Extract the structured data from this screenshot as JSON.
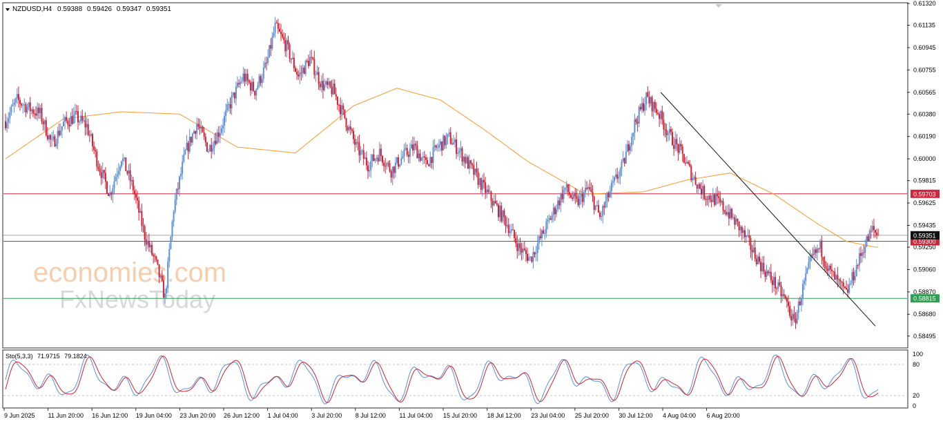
{
  "chart_data": {
    "type": "candlestick",
    "symbol_header": {
      "symbol": "NZDUSD,H4",
      "open": "0.59388",
      "high": "0.59426",
      "low": "0.59347",
      "close": "0.59351"
    },
    "price_axis": {
      "ylim": [
        0.584,
        0.6132
      ],
      "ticks": [
        "0.61320",
        "0.61135",
        "0.60945",
        "0.60755",
        "0.60565",
        "0.60380",
        "0.60190",
        "0.60000",
        "0.59815",
        "0.59625",
        "0.59435",
        "0.59250",
        "0.59060",
        "0.58870",
        "0.58680",
        "0.58495"
      ]
    },
    "horizontal_levels": [
      {
        "value": 0.59703,
        "label": "0.59703",
        "color": "#d0253a"
      },
      {
        "value": 0.593,
        "label": "0.59300",
        "color": "#d0253a"
      },
      {
        "value": 0.58815,
        "label": "0.58815",
        "color": "#2e9e50"
      }
    ],
    "current_price": {
      "value": 0.59351,
      "label": "0.59351"
    },
    "time_axis_labels": [
      "9 Jun 2025",
      "11 Jun 20:00",
      "16 Jun 12:00",
      "19 Jun 04:00",
      "23 Jun 20:00",
      "26 Jun 12:00",
      "1 Jul 04:00",
      "3 Jul 20:00",
      "8 Jul 12:00",
      "11 Jul 04:00",
      "15 Jul 20:00",
      "18 Jul 12:00",
      "23 Jul 04:00",
      "25 Jul 20:00",
      "30 Jul 12:00",
      "4 Aug 04:00",
      "6 Aug 20:00"
    ],
    "close_path_approx": [
      [
        0,
        0.6032
      ],
      [
        8,
        0.605
      ],
      [
        16,
        0.6043
      ],
      [
        24,
        0.6038
      ],
      [
        32,
        0.6012
      ],
      [
        40,
        0.603
      ],
      [
        48,
        0.6036
      ],
      [
        56,
        0.6028
      ],
      [
        64,
        0.5995
      ],
      [
        72,
        0.597
      ],
      [
        80,
        0.6002
      ],
      [
        88,
        0.5975
      ],
      [
        96,
        0.5935
      ],
      [
        104,
        0.591
      ],
      [
        110,
        0.5882
      ],
      [
        116,
        0.5958
      ],
      [
        124,
        0.6005
      ],
      [
        132,
        0.603
      ],
      [
        140,
        0.6008
      ],
      [
        148,
        0.6025
      ],
      [
        156,
        0.605
      ],
      [
        164,
        0.607
      ],
      [
        172,
        0.6058
      ],
      [
        180,
        0.608
      ],
      [
        186,
        0.6112
      ],
      [
        194,
        0.6095
      ],
      [
        202,
        0.607
      ],
      [
        210,
        0.6085
      ],
      [
        218,
        0.6063
      ],
      [
        226,
        0.6058
      ],
      [
        234,
        0.6035
      ],
      [
        242,
        0.601
      ],
      [
        250,
        0.5995
      ],
      [
        258,
        0.6005
      ],
      [
        266,
        0.599
      ],
      [
        274,
        0.6002
      ],
      [
        282,
        0.601
      ],
      [
        290,
        0.5995
      ],
      [
        298,
        0.601
      ],
      [
        306,
        0.6018
      ],
      [
        314,
        0.6005
      ],
      [
        322,
        0.599
      ],
      [
        330,
        0.5975
      ],
      [
        338,
        0.596
      ],
      [
        346,
        0.5945
      ],
      [
        354,
        0.5925
      ],
      [
        362,
        0.5915
      ],
      [
        370,
        0.5935
      ],
      [
        378,
        0.5955
      ],
      [
        386,
        0.5975
      ],
      [
        394,
        0.5962
      ],
      [
        402,
        0.5975
      ],
      [
        410,
        0.595
      ],
      [
        418,
        0.5975
      ],
      [
        426,
        0.5995
      ],
      [
        434,
        0.603
      ],
      [
        442,
        0.6052
      ],
      [
        450,
        0.604
      ],
      [
        458,
        0.602
      ],
      [
        466,
        0.6005
      ],
      [
        474,
        0.5985
      ],
      [
        482,
        0.597
      ],
      [
        490,
        0.5965
      ],
      [
        498,
        0.5955
      ],
      [
        506,
        0.5942
      ],
      [
        514,
        0.5925
      ],
      [
        522,
        0.5908
      ],
      [
        530,
        0.5895
      ],
      [
        538,
        0.588
      ],
      [
        544,
        0.586
      ],
      [
        550,
        0.589
      ],
      [
        556,
        0.5915
      ],
      [
        562,
        0.5925
      ],
      [
        568,
        0.5905
      ],
      [
        574,
        0.5895
      ],
      [
        580,
        0.5885
      ],
      [
        586,
        0.5905
      ],
      [
        592,
        0.5925
      ],
      [
        598,
        0.594
      ],
      [
        602,
        0.59351
      ]
    ],
    "moving_average_approx": [
      [
        0,
        0.6
      ],
      [
        40,
        0.6034
      ],
      [
        80,
        0.604
      ],
      [
        120,
        0.6038
      ],
      [
        160,
        0.601
      ],
      [
        200,
        0.6005
      ],
      [
        240,
        0.6045
      ],
      [
        270,
        0.606
      ],
      [
        300,
        0.605
      ],
      [
        330,
        0.6025
      ],
      [
        360,
        0.5998
      ],
      [
        400,
        0.597
      ],
      [
        440,
        0.5972
      ],
      [
        470,
        0.5982
      ],
      [
        500,
        0.5988
      ],
      [
        530,
        0.597
      ],
      [
        560,
        0.5945
      ],
      [
        580,
        0.593
      ],
      [
        600,
        0.5925
      ]
    ],
    "trendline": {
      "from": [
        452,
        0.60565
      ],
      "to": [
        600,
        0.5858
      ]
    },
    "stochastic": {
      "label": "Sto(5,3,3)",
      "k_value": "71.9715",
      "d_value": "79.1824",
      "ticks": [
        "100",
        "80",
        "20",
        "0"
      ],
      "levels": [
        80,
        20
      ]
    }
  },
  "watermark": {
    "line1": "economies.com",
    "line2": "FxNewsToday"
  },
  "colors": {
    "bull": "#5b8fd9",
    "bear": "#d4202e",
    "ma": "#f39a2c",
    "stoch_k": "#5b8fd9",
    "stoch_d": "#d4202e",
    "trend": "#111111"
  }
}
